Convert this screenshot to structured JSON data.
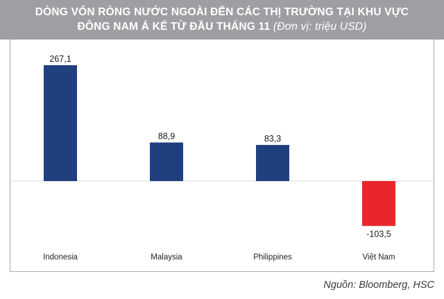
{
  "header": {
    "title_line1": "DÒNG VỐN RÒNG NƯỚC NGOÀI ĐẾN CÁC THỊ TRƯỜNG TẠI KHU VỰC",
    "title_line2_main": "ĐÔNG NAM Á KỂ TỪ ĐẦU THÁNG 11",
    "title_line2_unit": "(Đơn vị: triệu USD)"
  },
  "chart_data": {
    "type": "bar",
    "title": "DÒNG VỐN RÒNG NƯỚC NGOÀI ĐẾN CÁC THỊ TRƯỜNG TẠI KHU VỰC ĐÔNG NAM Á KỂ TỪ ĐẦU THÁNG 11",
    "unit": "(Đơn vị: triệu USD)",
    "categories": [
      "Indonesia",
      "Malaysia",
      "Philippines",
      "Việt Nam"
    ],
    "values": [
      267.1,
      88.9,
      83.3,
      -103.5
    ],
    "value_labels": [
      "267,1",
      "88,9",
      "83,3",
      "-103,5"
    ],
    "ylim": [
      -120,
      300
    ],
    "grid": false,
    "legend": "none",
    "colors": {
      "positive": "#1f3f7f",
      "negative": "#e8262b",
      "baseline": "#d9d9d9"
    }
  },
  "footer": {
    "source": "Nguồn: Bloomberg, HSC"
  }
}
